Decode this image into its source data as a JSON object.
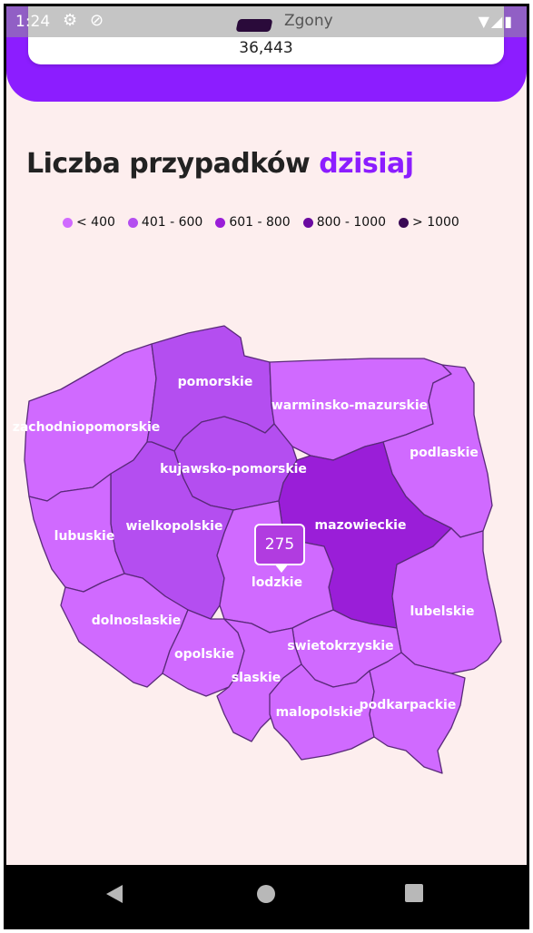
{
  "status_bar": {
    "time": "1:24",
    "app_title": "Zgony"
  },
  "card": {
    "value": "36,443"
  },
  "page": {
    "title_part1": "Liczba przypadków ",
    "title_part2": "dzisiaj"
  },
  "legend": [
    {
      "label": "< 400",
      "color": "#d06aff"
    },
    {
      "label": "401 - 600",
      "color": "#b44ef0"
    },
    {
      "label": "601 - 800",
      "color": "#9a1ed8"
    },
    {
      "label": "800 - 1000",
      "color": "#6a0aa0"
    },
    {
      "label": "> 1000",
      "color": "#3a0a55"
    }
  ],
  "map": {
    "regions": [
      {
        "name": "pomorskie",
        "color": "#b44ef0"
      },
      {
        "name": "warminsko-mazurskie",
        "color": "#d06aff"
      },
      {
        "name": "zachodniopomorskie",
        "color": "#d06aff"
      },
      {
        "name": "podlaskie",
        "color": "#d06aff"
      },
      {
        "name": "kujawsko-pomorskie",
        "color": "#b44ef0"
      },
      {
        "name": "wielkopolskie",
        "color": "#b44ef0"
      },
      {
        "name": "mazowieckie",
        "color": "#9a1ed8"
      },
      {
        "name": "lubuskie",
        "color": "#d06aff"
      },
      {
        "name": "lodzkie",
        "color": "#d06aff"
      },
      {
        "name": "lubelskie",
        "color": "#d06aff"
      },
      {
        "name": "dolnoslaskie",
        "color": "#d06aff"
      },
      {
        "name": "opolskie",
        "color": "#d06aff"
      },
      {
        "name": "swietokrzyskie",
        "color": "#d06aff"
      },
      {
        "name": "slaskie",
        "color": "#d06aff"
      },
      {
        "name": "malopolskie",
        "color": "#d06aff"
      },
      {
        "name": "podkarpackie",
        "color": "#d06aff"
      }
    ],
    "tooltip_value": "275"
  }
}
